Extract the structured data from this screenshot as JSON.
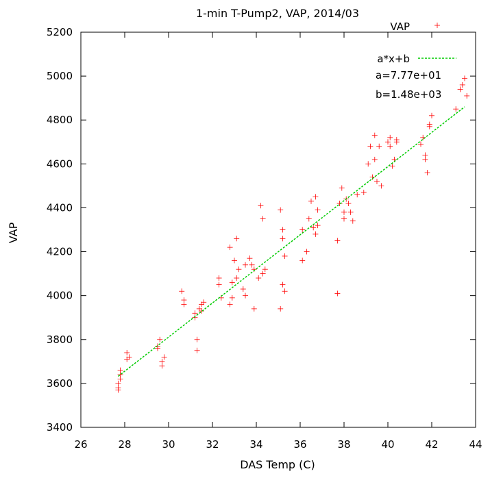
{
  "chart_data": {
    "type": "scatter",
    "title": "1-min T-Pump2, VAP, 2014/03",
    "xlabel": "DAS Temp (C)",
    "ylabel": "VAP",
    "xlim": [
      26,
      44
    ],
    "ylim": [
      3400,
      5200
    ],
    "xticks": [
      "26",
      "28",
      "30",
      "32",
      "34",
      "36",
      "38",
      "40",
      "42",
      "44"
    ],
    "yticks": [
      "3400",
      "3600",
      "3800",
      "4000",
      "4200",
      "4400",
      "4600",
      "4800",
      "5000",
      "5200"
    ],
    "grid": false,
    "legend_position": "top-right",
    "colors": {
      "points": "#ff0000",
      "fit": "#00cc00"
    },
    "legend": {
      "points_label": "VAP",
      "fit_label": "a*x+b",
      "a_text": "a=7.77e+01",
      "b_text": "b=1.48e+03"
    },
    "fit": {
      "a": 77.7,
      "b": 1480,
      "x_range": [
        27.7,
        43.5
      ]
    },
    "series": [
      {
        "name": "VAP",
        "x": [
          27.7,
          27.7,
          27.8,
          27.8,
          27.7,
          27.8,
          28.1,
          28.1,
          28.2,
          29.5,
          29.6,
          29.5,
          29.7,
          29.8,
          29.7,
          30.7,
          30.7,
          30.6,
          31.2,
          31.2,
          31.3,
          31.3,
          31.4,
          31.5,
          31.5,
          31.6,
          32.3,
          32.3,
          32.4,
          32.8,
          32.8,
          32.9,
          32.9,
          33.0,
          33.1,
          33.1,
          33.2,
          33.4,
          33.5,
          33.5,
          33.7,
          33.8,
          33.9,
          33.9,
          34.1,
          34.2,
          34.3,
          34.4,
          34.3,
          35.1,
          35.2,
          35.2,
          35.3,
          35.2,
          35.3,
          35.1,
          36.1,
          36.1,
          36.3,
          36.4,
          36.5,
          36.6,
          36.7,
          36.7,
          36.8,
          36.8,
          37.7,
          37.7,
          37.8,
          37.9,
          38.0,
          38.0,
          38.1,
          38.2,
          38.3,
          38.4,
          38.6,
          38.9,
          39.1,
          39.2,
          39.3,
          39.4,
          39.4,
          39.5,
          39.6,
          39.7,
          40.0,
          40.1,
          40.1,
          40.2,
          40.3,
          40.4,
          40.4,
          41.5,
          41.6,
          41.7,
          41.7,
          41.8,
          41.9,
          42.0,
          41.9,
          43.1,
          43.3,
          43.4,
          43.5,
          43.6
        ],
        "y": [
          3570,
          3600,
          3620,
          3660,
          3580,
          3640,
          3710,
          3740,
          3720,
          3770,
          3800,
          3760,
          3700,
          3720,
          3680,
          3980,
          3960,
          4020,
          3900,
          3920,
          3800,
          3750,
          3940,
          3960,
          3930,
          3970,
          4050,
          4080,
          3990,
          4220,
          3960,
          3990,
          4060,
          4160,
          4260,
          4080,
          4120,
          4030,
          4000,
          4140,
          4170,
          4140,
          4120,
          3940,
          4080,
          4410,
          4350,
          4120,
          4100,
          4390,
          4260,
          4300,
          4180,
          4050,
          4020,
          3940,
          4160,
          4300,
          4200,
          4350,
          4430,
          4310,
          4280,
          4450,
          4320,
          4390,
          4250,
          4010,
          4420,
          4490,
          4380,
          4350,
          4440,
          4420,
          4380,
          4340,
          4460,
          4470,
          4600,
          4680,
          4540,
          4620,
          4730,
          4520,
          4680,
          4500,
          4700,
          4720,
          4680,
          4590,
          4620,
          4710,
          4700,
          4690,
          4720,
          4640,
          4620,
          4560,
          4770,
          4820,
          4780,
          4850,
          4940,
          4960,
          4990,
          4910
        ]
      }
    ]
  }
}
